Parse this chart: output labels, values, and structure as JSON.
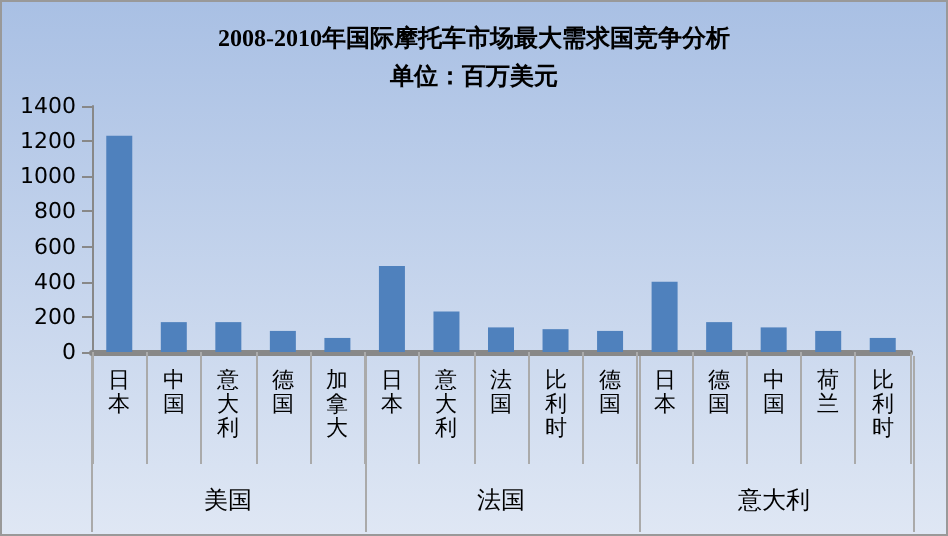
{
  "chart_data": {
    "type": "bar",
    "title": "2008-2010年国际摩托车市场最大需求国竞争分析",
    "subtitle": "单位：百万美元",
    "categories": [
      "日本",
      "中国",
      "意大利",
      "德国",
      "加拿大",
      "日本",
      "意大利",
      "法国",
      "比利时",
      "德国",
      "日本",
      "德国",
      "中国",
      "荷兰",
      "比利时"
    ],
    "values": [
      1230,
      170,
      170,
      120,
      80,
      490,
      230,
      140,
      130,
      120,
      400,
      170,
      140,
      120,
      80
    ],
    "color": "#4f81bd",
    "annotations": [
      "美国",
      "法国",
      "意大利"
    ],
    "ylim": [
      0,
      1400
    ],
    "yticks": [
      0,
      200,
      400,
      600,
      800,
      1000,
      1200,
      1400
    ],
    "grid": false
  }
}
